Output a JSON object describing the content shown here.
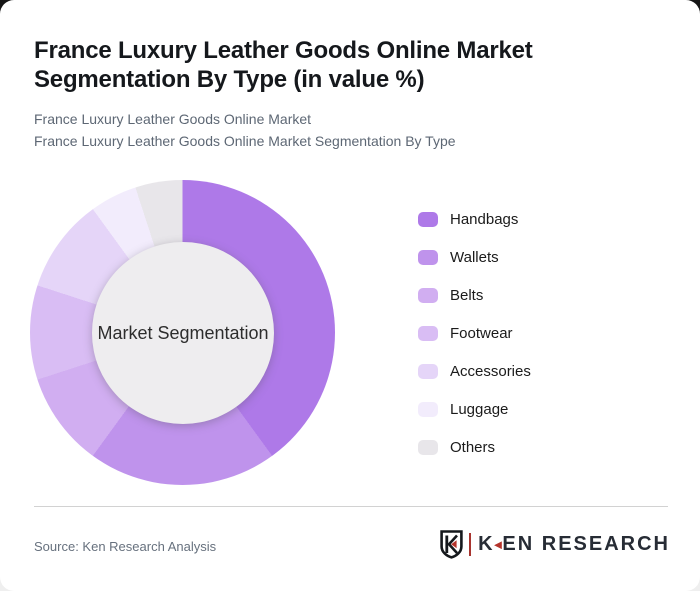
{
  "card": {
    "title_lines": [
      "France Luxury Leather Goods Online Market",
      "Segmentation By Type (in value %)"
    ],
    "subtitle_lines": [
      "France Luxury Leather Goods Online Market",
      "France Luxury Leather Goods Online Market Segmentation By Type"
    ]
  },
  "chart_data": {
    "type": "pie",
    "subtype": "donut",
    "title": "France Luxury Leather Goods Online Market Segmentation By Type (in value %)",
    "center_label": "Market Segmentation",
    "categories": [
      "Handbags",
      "Wallets",
      "Belts",
      "Footwear",
      "Accessories",
      "Luggage",
      "Others"
    ],
    "values": [
      40,
      20,
      10,
      10,
      10,
      5,
      5
    ],
    "unit": "%",
    "values_note": "No numeric labels shown in chart; percentages estimated from arc angles",
    "colors": [
      "#ae79e8",
      "#bf93ec",
      "#d1aef1",
      "#d9bdf4",
      "#e5d5f8",
      "#f2ecfc",
      "#e8e6ea"
    ],
    "start_angle_deg": 0,
    "direction": "clockwise",
    "legend_position": "right",
    "hole_color": "#eeedef"
  },
  "footer": {
    "source": "Source: Ken Research Analysis",
    "logo": {
      "shield_letter": "K",
      "wordmark_k": "K",
      "triangle_glyph": "◄",
      "wordmark_rest": "EN RESEARCH",
      "accent_color": "#b5342c"
    }
  }
}
